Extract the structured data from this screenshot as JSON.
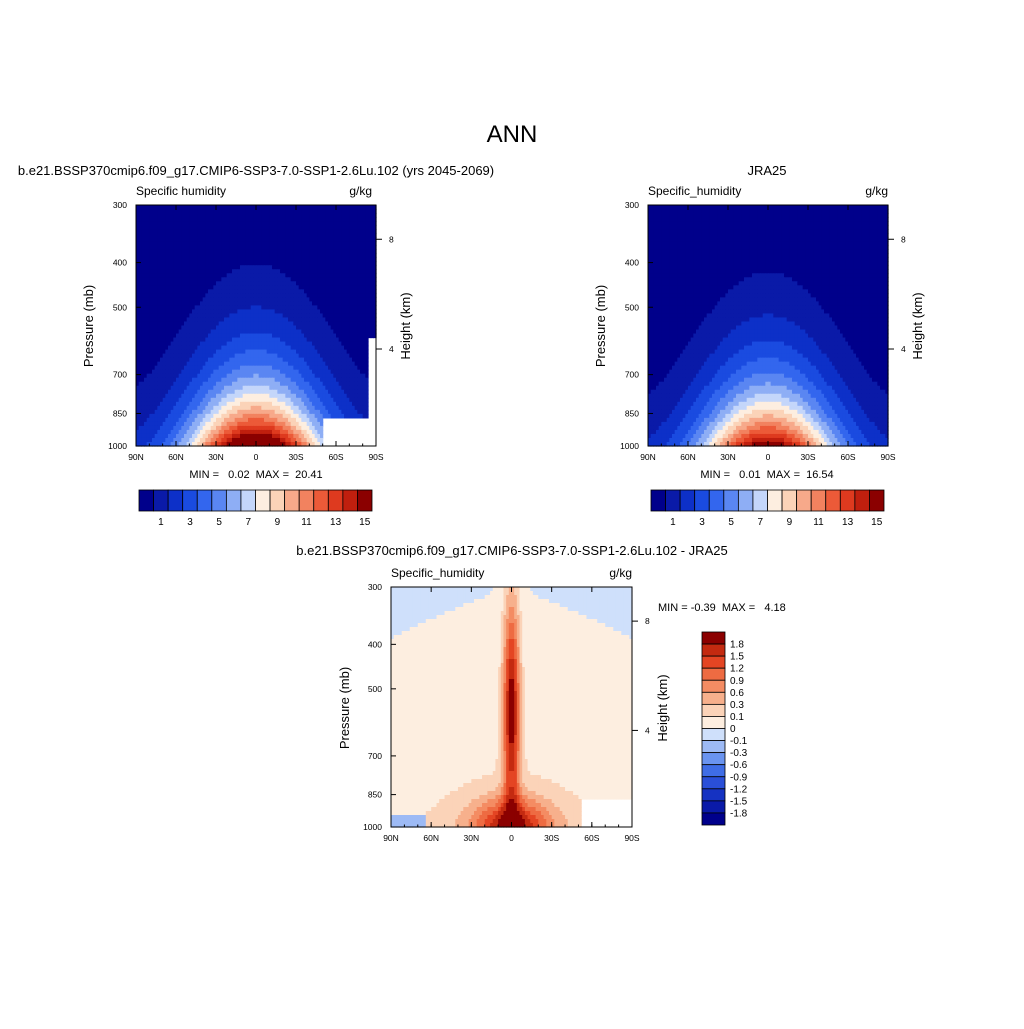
{
  "page_title": "ANN",
  "colors": {
    "abs_scale": [
      "#00008b",
      "#0a1aa8",
      "#0d30c8",
      "#1a4be0",
      "#3366ee",
      "#5a86f2",
      "#8eaef5",
      "#c4d6fa",
      "#fdeee0",
      "#fbd3b8",
      "#f7a98a",
      "#f2825f",
      "#ec5a38",
      "#de3a1f",
      "#c01f0e",
      "#8b0000"
    ],
    "diff_scale": [
      "#00008b",
      "#0a1aa8",
      "#1532c2",
      "#2a4fd8",
      "#3f6de6",
      "#6a94f0",
      "#9dbaf5",
      "#cfe0fb",
      "#fdeee0",
      "#fbd3b8",
      "#f7b08c",
      "#f48c63",
      "#ee6b42",
      "#e44523",
      "#c42a10",
      "#8b0000"
    ]
  },
  "chart_data": [
    {
      "type": "heatmap",
      "title": "b.e21.BSSP370cmip6.f09_g17.CMIP6-SSP3-7.0-SSP1-2.6Lu.102 (yrs 2045-2069)",
      "left_label": "Specific humidity",
      "right_label": "g/kg",
      "ylabel": "Pressure (mb)",
      "ylabel_right": "Height (km)",
      "x_ticks": [
        "90N",
        "60N",
        "30N",
        "0",
        "30S",
        "60S",
        "90S"
      ],
      "y_ticks": [
        "300",
        "400",
        "500",
        "700",
        "850",
        "1000"
      ],
      "y_ticks_right": [
        "8",
        "4"
      ],
      "stats_text": "MIN =   0.02  MAX =  20.41",
      "min": 0.02,
      "max": 20.41,
      "colorbar_labels": [
        "1",
        "3",
        "5",
        "7",
        "9",
        "11",
        "13",
        "15"
      ]
    },
    {
      "type": "heatmap",
      "title": "JRA25",
      "left_label": "Specific_humidity",
      "right_label": "g/kg",
      "ylabel": "Pressure (mb)",
      "ylabel_right": "Height (km)",
      "x_ticks": [
        "90N",
        "60N",
        "30N",
        "0",
        "30S",
        "60S",
        "90S"
      ],
      "y_ticks": [
        "300",
        "400",
        "500",
        "700",
        "850",
        "1000"
      ],
      "y_ticks_right": [
        "8",
        "4"
      ],
      "stats_text": "MIN =   0.01  MAX =  16.54",
      "min": 0.01,
      "max": 16.54,
      "colorbar_labels": [
        "1",
        "3",
        "5",
        "7",
        "9",
        "11",
        "13",
        "15"
      ]
    },
    {
      "type": "heatmap",
      "title": "b.e21.BSSP370cmip6.f09_g17.CMIP6-SSP3-7.0-SSP1-2.6Lu.102 - JRA25",
      "left_label": "Specific_humidity",
      "right_label": "g/kg",
      "ylabel": "Pressure (mb)",
      "ylabel_right": "Height (km)",
      "x_ticks": [
        "90N",
        "60N",
        "30N",
        "0",
        "30S",
        "60S",
        "90S"
      ],
      "y_ticks": [
        "300",
        "400",
        "500",
        "700",
        "850",
        "1000"
      ],
      "y_ticks_right": [
        "8",
        "4"
      ],
      "stats_text": "MIN = -0.39  MAX =   4.18",
      "min": -0.39,
      "max": 4.18,
      "colorbar_labels": [
        "1.8",
        "1.5",
        "1.2",
        "0.9",
        "0.6",
        "0.3",
        "0.1",
        "0",
        "-0.1",
        "-0.3",
        "-0.6",
        "-0.9",
        "-1.2",
        "-1.5",
        "-1.8"
      ]
    }
  ]
}
